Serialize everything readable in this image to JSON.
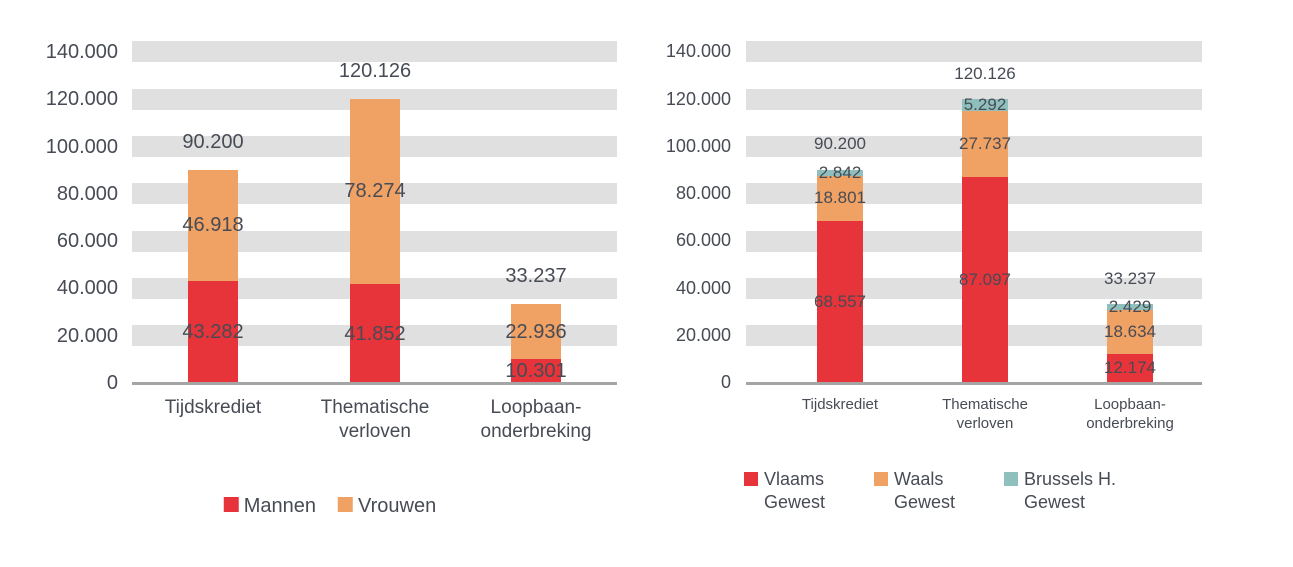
{
  "page": {
    "background": "#ffffff",
    "text_color": "#474B54"
  },
  "colors": {
    "red": "#E7333A",
    "orange": "#F0A164",
    "teal": "#90C0BE",
    "band_gray": "#E0E0E0",
    "axis_gray": "#A5A5A5"
  },
  "chart_data": [
    {
      "type": "bar",
      "stacked": true,
      "title": "",
      "categories": [
        "Tijdskrediet",
        "Thematische verloven",
        "Loopbaan-onderbreking"
      ],
      "category_lines": [
        [
          "Tijdskrediet"
        ],
        [
          "Thematische",
          "verloven"
        ],
        [
          "Loopbaan-",
          "onderbreking"
        ]
      ],
      "series": [
        {
          "name": "Mannen",
          "color": "#E7333A",
          "values": [
            43282,
            41852,
            10301
          ],
          "labels": [
            "43.282",
            "41.852",
            "10.301"
          ]
        },
        {
          "name": "Vrouwen",
          "color": "#F0A164",
          "values": [
            46918,
            78274,
            22936
          ],
          "labels": [
            "46.918",
            "78.274",
            "22.936"
          ]
        }
      ],
      "totals": [
        90200,
        120126,
        33237
      ],
      "total_labels": [
        "90.200",
        "120.126",
        "33.237"
      ],
      "xlabel": "",
      "ylabel": "",
      "ylim": [
        0,
        140000
      ],
      "y_axis": {
        "min": 0,
        "max": 140000,
        "step": 20000,
        "tick_labels": [
          "0",
          "20.000",
          "40.000",
          "60.000",
          "80.000",
          "100.000",
          "120.000",
          "140.000"
        ]
      },
      "grid": "horizontal-bands",
      "legend_position": "bottom",
      "legend": [
        {
          "label": "Mannen",
          "color": "#E7333A"
        },
        {
          "label": "Vrouwen",
          "color": "#F0A164"
        }
      ]
    },
    {
      "type": "bar",
      "stacked": true,
      "title": "",
      "categories": [
        "Tijdskrediet",
        "Thematische verloven",
        "Loopbaan-onderbreking"
      ],
      "category_lines": [
        [
          "Tijdskrediet"
        ],
        [
          "Thematische",
          "verloven"
        ],
        [
          "Loopbaan-",
          "onderbreking"
        ]
      ],
      "series": [
        {
          "name": "Vlaams Gewest",
          "color": "#E7333A",
          "values": [
            68557,
            87097,
            12174
          ],
          "labels": [
            "68.557",
            "87.097",
            "12.174"
          ]
        },
        {
          "name": "Waals Gewest",
          "color": "#F0A164",
          "values": [
            18801,
            27737,
            18634
          ],
          "labels": [
            "18.801",
            "27.737",
            "18.634"
          ]
        },
        {
          "name": "Brussels H. Gewest",
          "color": "#90C0BE",
          "values": [
            2842,
            5292,
            2429
          ],
          "labels": [
            "2.842",
            "5.292",
            "2.429"
          ]
        }
      ],
      "totals": [
        90200,
        120126,
        33237
      ],
      "total_labels": [
        "90.200",
        "120.126",
        "33.237"
      ],
      "xlabel": "",
      "ylabel": "",
      "ylim": [
        0,
        140000
      ],
      "y_axis": {
        "min": 0,
        "max": 140000,
        "step": 20000,
        "tick_labels": [
          "0",
          "20.000",
          "40.000",
          "60.000",
          "80.000",
          "100.000",
          "120.000",
          "140.000"
        ]
      },
      "grid": "horizontal-bands",
      "legend_position": "bottom",
      "legend": [
        {
          "label": "Vlaams Gewest",
          "color": "#E7333A"
        },
        {
          "label": "Waals Gewest",
          "color": "#F0A164"
        },
        {
          "label": "Brussels H. Gewest",
          "color": "#90C0BE"
        }
      ]
    }
  ]
}
